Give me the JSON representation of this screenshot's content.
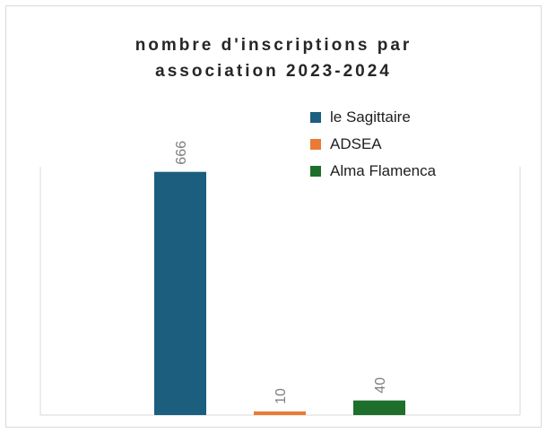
{
  "title_line1": "nombre d'inscriptions par",
  "title_line2": "association 2023-2024",
  "chart_data": {
    "type": "bar",
    "title": "nombre d'inscriptions par association 2023-2024",
    "categories": [
      "le Sagittaire",
      "ADSEA",
      "Alma Flamenca"
    ],
    "series": [
      {
        "name": "le Sagittaire",
        "values": [
          666,
          null,
          null
        ],
        "color": "#1b5e7e"
      },
      {
        "name": "ADSEA",
        "values": [
          null,
          10,
          null
        ],
        "color": "#e97b35"
      },
      {
        "name": "Alma Flamenca",
        "values": [
          null,
          null,
          40
        ],
        "color": "#1f6f2c"
      }
    ],
    "data_labels": [
      "666",
      "10",
      "40"
    ],
    "ylim": [
      0,
      680
    ],
    "grid": false,
    "legend_position": "top-right"
  }
}
